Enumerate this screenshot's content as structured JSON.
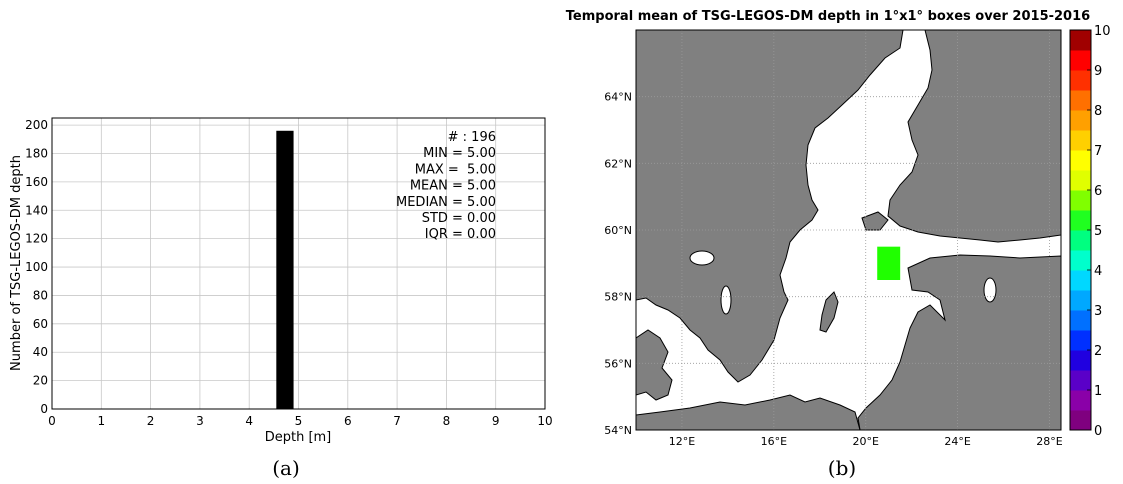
{
  "captions": {
    "a": "(a)",
    "b": "(b)"
  },
  "chart_data": [
    {
      "type": "bar",
      "panel": "(a)",
      "xlabel": "Depth [m]",
      "ylabel": "Number of TSG-LEGOS-DM depth",
      "xlim": [
        0,
        10
      ],
      "ylim": [
        0,
        205
      ],
      "xticks": [
        "0",
        "1",
        "2",
        "3",
        "4",
        "5",
        "6",
        "7",
        "8",
        "9",
        "10"
      ],
      "yticks": [
        "0",
        "20",
        "40",
        "60",
        "80",
        "100",
        "120",
        "140",
        "160",
        "180",
        "200"
      ],
      "grid": true,
      "bars": [
        {
          "x0": 4.55,
          "x1": 4.9,
          "value": 196
        }
      ],
      "bar_color": "#000000",
      "stats": [
        "# : 196",
        "MIN = 5.00",
        "MAX =  5.00",
        "MEAN = 5.00",
        "MEDIAN = 5.00",
        "STD = 0.00",
        "IQR = 0.00"
      ]
    },
    {
      "type": "heatmap",
      "panel": "(b)",
      "title": "Temporal mean of TSG-LEGOS-DM depth in 1°x1° boxes over 2015-2016",
      "lon_range": [
        10,
        28.5
      ],
      "lat_range": [
        54,
        66
      ],
      "xticks": [
        "12°E",
        "16°E",
        "20°E",
        "24°E",
        "28°E"
      ],
      "yticks": [
        "54°N",
        "56°N",
        "58°N",
        "60°N",
        "62°N",
        "64°N"
      ],
      "grid": true,
      "cells": [
        {
          "lon": [
            20.5,
            21.5
          ],
          "lat": [
            58.5,
            59.5
          ],
          "value": 5.0
        }
      ],
      "land_color": "#808080",
      "sea_color": "#ffffff",
      "colorbar": {
        "min": 0,
        "max": 10,
        "ticks": [
          "0",
          "1",
          "2",
          "3",
          "4",
          "5",
          "6",
          "7",
          "8",
          "9",
          "10"
        ],
        "colors": [
          "#7f007f",
          "#8a00a8",
          "#5a00c8",
          "#2000e0",
          "#0030ff",
          "#0070ff",
          "#00a8ff",
          "#00d8ff",
          "#00ffcc",
          "#00ff80",
          "#20ff20",
          "#80ff00",
          "#e0ff00",
          "#ffff00",
          "#ffd000",
          "#ffa000",
          "#ff7000",
          "#ff3000",
          "#ff0000",
          "#a00000"
        ]
      }
    }
  ]
}
